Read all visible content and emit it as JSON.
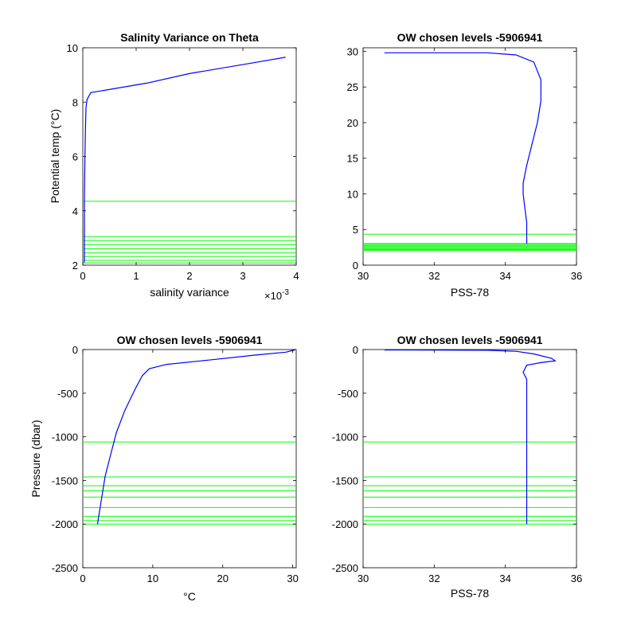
{
  "chart_data": [
    {
      "type": "line",
      "title": "Salinity Variance on Theta",
      "xlabel": "salinity variance",
      "ylabel": "Potential temp (°C)",
      "x_exponent_label": "×10",
      "x_exponent_power": "-3",
      "xlim": [
        0,
        0.004
      ],
      "ylim": [
        2,
        10
      ],
      "xticks": [
        0,
        0.001,
        0.002,
        0.003,
        0.004
      ],
      "xtick_labels": [
        "0",
        "1",
        "2",
        "3",
        "4"
      ],
      "yticks": [
        2,
        4,
        6,
        8,
        10
      ],
      "ytick_labels": [
        "2",
        "4",
        "6",
        "8",
        "10"
      ],
      "series": [
        {
          "color": "#0000ff",
          "points": [
            [
              3e-05,
              2.1
            ],
            [
              3e-05,
              4.5
            ],
            [
              4e-05,
              6.0
            ],
            [
              5e-05,
              7.0
            ],
            [
              6e-05,
              7.8
            ],
            [
              8e-05,
              8.1
            ],
            [
              0.00015,
              8.35
            ],
            [
              0.0012,
              8.7
            ],
            [
              0.002,
              9.05
            ],
            [
              0.0032,
              9.45
            ],
            [
              0.0038,
              9.65
            ]
          ]
        }
      ],
      "chosen_levels": [
        4.35,
        3.05,
        2.9,
        2.75,
        2.6,
        2.45,
        2.32,
        2.18,
        2.08
      ],
      "level_color": "#00ff00"
    },
    {
      "type": "line",
      "title": "OW chosen levels -5906941",
      "xlabel": "PSS-78",
      "ylabel": "",
      "xlim": [
        30,
        36
      ],
      "ylim": [
        0,
        30.5
      ],
      "xticks": [
        30,
        32,
        34,
        36
      ],
      "xtick_labels": [
        "30",
        "32",
        "34",
        "36"
      ],
      "yticks": [
        0,
        5,
        10,
        15,
        20,
        25,
        30
      ],
      "ytick_labels": [
        "0",
        "5",
        "10",
        "15",
        "20",
        "25",
        "30"
      ],
      "series": [
        {
          "color": "#0000ff",
          "points": [
            [
              30.6,
              29.8
            ],
            [
              33.5,
              29.8
            ],
            [
              34.3,
              29.5
            ],
            [
              34.8,
              28.5
            ],
            [
              35.0,
              26.0
            ],
            [
              35.0,
              23.0
            ],
            [
              34.9,
              20.0
            ],
            [
              34.75,
              17.0
            ],
            [
              34.6,
              14.0
            ],
            [
              34.5,
              11.5
            ],
            [
              34.5,
              10.0
            ],
            [
              34.55,
              8.0
            ],
            [
              34.6,
              6.0
            ],
            [
              34.6,
              4.0
            ],
            [
              34.6,
              3.0
            ]
          ]
        }
      ],
      "chosen_levels": [
        4.35,
        3.05,
        2.9,
        2.75,
        2.6,
        2.45,
        2.32,
        2.18,
        2.08
      ],
      "level_color": "#00ff00"
    },
    {
      "type": "line",
      "title": "OW chosen levels -5906941",
      "xlabel": "°C",
      "ylabel": "Pressure (dbar)",
      "xlim": [
        0,
        30.5
      ],
      "ylim": [
        -2500,
        0
      ],
      "xticks": [
        0,
        10,
        20,
        30
      ],
      "xtick_labels": [
        "0",
        "10",
        "20",
        "30"
      ],
      "yticks": [
        0,
        -500,
        -1000,
        -1500,
        -2000,
        -2500
      ],
      "ytick_labels": [
        "0",
        "-500",
        "-1000",
        "-1500",
        "-2000",
        "-2500"
      ],
      "series": [
        {
          "color": "#0000ff",
          "points": [
            [
              30.3,
              -5
            ],
            [
              29.0,
              -30
            ],
            [
              25.0,
              -60
            ],
            [
              18.0,
              -120
            ],
            [
              12.0,
              -170
            ],
            [
              9.5,
              -220
            ],
            [
              8.5,
              -300
            ],
            [
              7.5,
              -450
            ],
            [
              6.0,
              -700
            ],
            [
              4.8,
              -950
            ],
            [
              4.0,
              -1200
            ],
            [
              3.2,
              -1450
            ],
            [
              2.7,
              -1700
            ],
            [
              2.3,
              -1900
            ],
            [
              2.1,
              -2000
            ]
          ]
        }
      ],
      "chosen_levels": [
        -1060,
        -1460,
        -1560,
        -1620,
        -1690,
        -1810,
        -1910,
        -1960,
        -2000
      ],
      "level_color": "#00ff00"
    },
    {
      "type": "line",
      "title": "OW chosen levels -5906941",
      "xlabel": "PSS-78",
      "ylabel": "",
      "xlim": [
        30,
        36
      ],
      "ylim": [
        -2500,
        0
      ],
      "xticks": [
        30,
        32,
        34,
        36
      ],
      "xtick_labels": [
        "30",
        "32",
        "34",
        "36"
      ],
      "yticks": [
        0,
        -500,
        -1000,
        -1500,
        -2000,
        -2500
      ],
      "ytick_labels": [
        "0",
        "-500",
        "-1000",
        "-1500",
        "-2000",
        "-2500"
      ],
      "series": [
        {
          "color": "#0000ff",
          "points": [
            [
              30.6,
              -5
            ],
            [
              33.5,
              -8
            ],
            [
              34.3,
              -20
            ],
            [
              34.8,
              -50
            ],
            [
              35.3,
              -100
            ],
            [
              35.4,
              -130
            ],
            [
              35.0,
              -150
            ],
            [
              34.6,
              -180
            ],
            [
              34.5,
              -260
            ],
            [
              34.6,
              -340
            ],
            [
              34.6,
              -500
            ],
            [
              34.6,
              -1000
            ],
            [
              34.6,
              -1500
            ],
            [
              34.6,
              -2000
            ]
          ]
        }
      ],
      "chosen_levels": [
        -1060,
        -1460,
        -1560,
        -1620,
        -1690,
        -1810,
        -1910,
        -1960,
        -2000
      ],
      "level_color": "#00ff00"
    }
  ]
}
